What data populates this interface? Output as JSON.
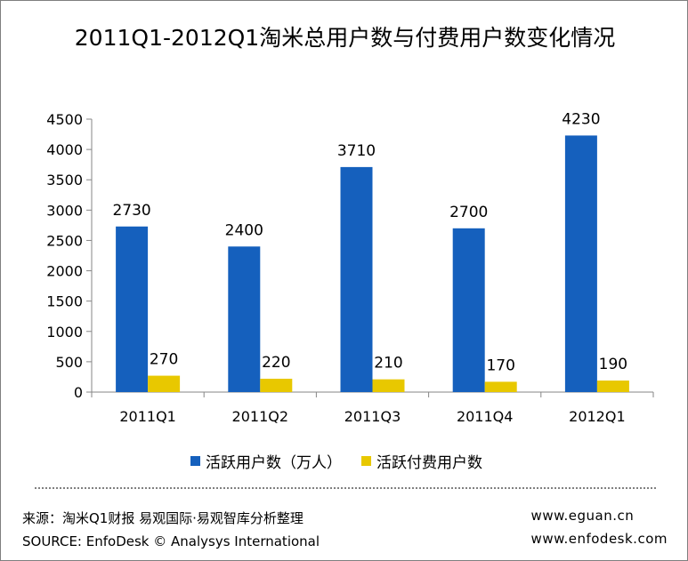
{
  "chart_data": {
    "type": "bar",
    "title": "2011Q1-2012Q1淘米总用户数与付费用户数变化情况",
    "categories": [
      "2011Q1",
      "2011Q2",
      "2011Q3",
      "2011Q4",
      "2012Q1"
    ],
    "series": [
      {
        "name": "活跃用户数（万人）",
        "values": [
          2730,
          2400,
          3710,
          2700,
          4230
        ],
        "color": "#1560BD"
      },
      {
        "name": "活跃付费用户数",
        "values": [
          270,
          220,
          210,
          170,
          190
        ],
        "color": "#E8C800"
      }
    ],
    "ylim": [
      0,
      4500
    ],
    "yticks": [
      0,
      500,
      1000,
      1500,
      2000,
      2500,
      3000,
      3500,
      4000,
      4500
    ],
    "grid": false,
    "legend": "bottom"
  },
  "footer": {
    "source_cn": "来源：淘米Q1财报 易观国际·易观智库分析整理",
    "source_en": "SOURCE: EnfoDesk © Analysys International",
    "site1": "www.eguan.cn",
    "site2": "www.enfodesk.com"
  }
}
